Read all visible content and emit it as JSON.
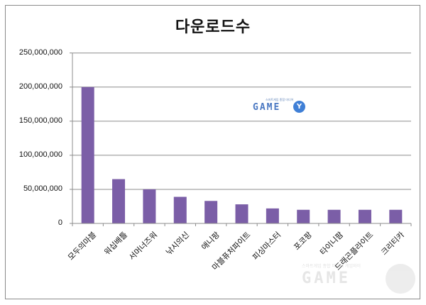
{
  "chart_data": {
    "type": "bar",
    "title": "다운로드수",
    "xlabel": "",
    "ylabel": "",
    "ylim": [
      0,
      250000000
    ],
    "yticks": [
      0,
      50000000,
      100000000,
      150000000,
      200000000,
      250000000
    ],
    "ytick_labels": [
      "0",
      "50,000,000",
      "100,000,000",
      "150,000,000",
      "200,000,000",
      "250,000,000"
    ],
    "grid": true,
    "legend": "none",
    "bar_color": "#7b5ea7",
    "categories": [
      "모두의마블",
      "워십배틀",
      "서머너즈워",
      "낚시의신",
      "애니팡",
      "마블퓨처파이트",
      "피싱마스터",
      "포코팡",
      "타이니팜",
      "드래곤플라이트",
      "크리티카"
    ],
    "values": [
      200000000,
      65000000,
      50000000,
      39000000,
      33000000,
      28000000,
      22000000,
      20000000,
      20000000,
      20000000,
      20000000
    ]
  },
  "watermark": {
    "logo_tagline": "스마트게임 종합 미디어",
    "logo_text": "GAME",
    "logo_badge": "Y",
    "bottom_tagline": "스마트게임 종합 미디어 게임와이",
    "bottom_text": "GAME"
  }
}
